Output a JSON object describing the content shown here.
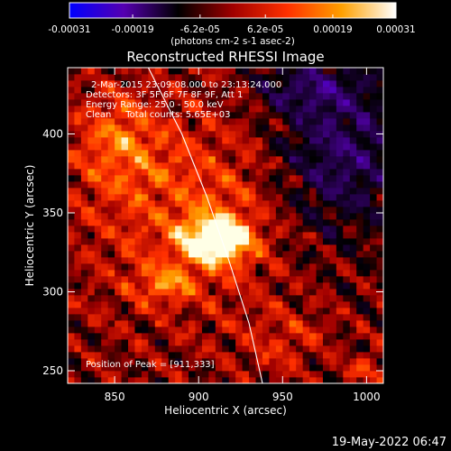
{
  "chart_data": {
    "type": "heatmap",
    "title": "Reconstructed RHESSI Image",
    "xlabel": "Heliocentric X (arcsec)",
    "ylabel": "Heliocentric Y (arcsec)",
    "xlim": [
      822,
      1010
    ],
    "ylim": [
      242,
      442
    ],
    "x_ticks": [
      850,
      900,
      950,
      1000
    ],
    "y_ticks": [
      250,
      300,
      350,
      400
    ],
    "colorbar": {
      "range": [
        -0.00031,
        0.00031
      ],
      "tick_values": [
        -0.00031,
        -0.00019,
        -6.2e-05,
        6.2e-05,
        0.00019,
        0.00031
      ],
      "tick_labels": [
        "-0.00031",
        "-0.00019",
        "-6.2e-05",
        "6.2e-05",
        "0.00019",
        "0.00031"
      ],
      "unit_label": "(photons cm-2 s-1 asec-2)",
      "colors": [
        "#0000ff",
        "#5500b0",
        "#000000",
        "#a00000",
        "#ff3000",
        "#ffa000",
        "#ffffff"
      ]
    },
    "peak": {
      "x": 911,
      "y": 333
    },
    "limb_curve": [
      [
        870,
        442
      ],
      [
        890,
        400
      ],
      [
        905,
        360
      ],
      [
        918,
        320
      ],
      [
        930,
        280
      ],
      [
        938,
        242
      ]
    ],
    "annotations": [
      "2-Mar-2015 23:09:08.000 to 23:13:24.000",
      "Detectors: 3F 5F 6F 7F 8F 9F, Att 1",
      "Energy Range: 25.0 - 50.0 keV",
      "Clean     Total counts: 5.65E+03"
    ],
    "peak_label": "Position of Peak = [911,333]"
  },
  "footer": {
    "date": "19-May-2022 06:47"
  }
}
